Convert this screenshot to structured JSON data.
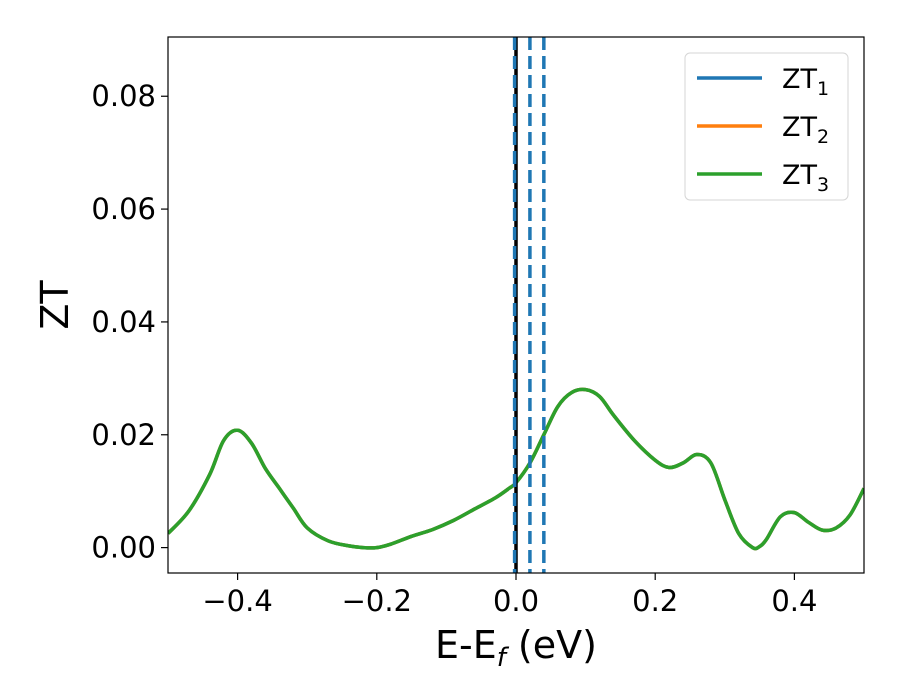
{
  "chart_data": {
    "type": "line",
    "xlabel": "E-E",
    "xlabel_sub": "f",
    "xlabel_unit": "(eV)",
    "ylabel": "ZT",
    "xlim": [
      -0.5,
      0.5
    ],
    "ylim": [
      -0.0045,
      0.0905
    ],
    "xticks": [
      -0.4,
      -0.2,
      0.0,
      0.2,
      0.4
    ],
    "xtick_labels": [
      "−0.4",
      "−0.2",
      "0.0",
      "0.2",
      "0.4"
    ],
    "yticks": [
      0.0,
      0.02,
      0.04,
      0.06,
      0.08
    ],
    "ytick_labels": [
      "0.00",
      "0.02",
      "0.04",
      "0.06",
      "0.08"
    ],
    "grid": false,
    "legend_position": "top-right",
    "series": [
      {
        "name": "ZT",
        "sub": "1",
        "color": "#1f77b4",
        "identical_to": "ZT3"
      },
      {
        "name": "ZT",
        "sub": "2",
        "color": "#ff7f0e",
        "identical_to": "ZT3"
      },
      {
        "name": "ZT",
        "sub": "3",
        "color": "#2ca02c",
        "x": [
          -0.5,
          -0.47,
          -0.44,
          -0.42,
          -0.4,
          -0.38,
          -0.36,
          -0.34,
          -0.32,
          -0.3,
          -0.27,
          -0.24,
          -0.22,
          -0.2,
          -0.18,
          -0.15,
          -0.12,
          -0.09,
          -0.06,
          -0.03,
          -0.01,
          0.0,
          0.02,
          0.04,
          0.06,
          0.08,
          0.1,
          0.12,
          0.14,
          0.17,
          0.2,
          0.22,
          0.24,
          0.26,
          0.28,
          0.3,
          0.32,
          0.34,
          0.35,
          0.36,
          0.38,
          0.4,
          0.42,
          0.44,
          0.46,
          0.48,
          0.5
        ],
        "y": [
          0.0025,
          0.0065,
          0.013,
          0.019,
          0.0208,
          0.0185,
          0.014,
          0.0105,
          0.007,
          0.0035,
          0.0012,
          0.0003,
          0.0,
          0.0,
          0.0006,
          0.002,
          0.0032,
          0.0048,
          0.0068,
          0.0088,
          0.0105,
          0.0115,
          0.015,
          0.02,
          0.025,
          0.0275,
          0.028,
          0.0268,
          0.0235,
          0.019,
          0.0155,
          0.0142,
          0.015,
          0.0165,
          0.015,
          0.0085,
          0.0025,
          0.0,
          0.0002,
          0.0015,
          0.0055,
          0.0062,
          0.0045,
          0.0031,
          0.0035,
          0.0058,
          0.0105
        ]
      }
    ],
    "vlines": [
      {
        "x": 0.0,
        "color": "#000000",
        "style": "solid"
      },
      {
        "x": -0.002,
        "color": "#1f77b4",
        "style": "dashed"
      },
      {
        "x": 0.02,
        "color": "#1f77b4",
        "style": "dashed"
      },
      {
        "x": 0.04,
        "color": "#1f77b4",
        "style": "dashed"
      }
    ]
  }
}
